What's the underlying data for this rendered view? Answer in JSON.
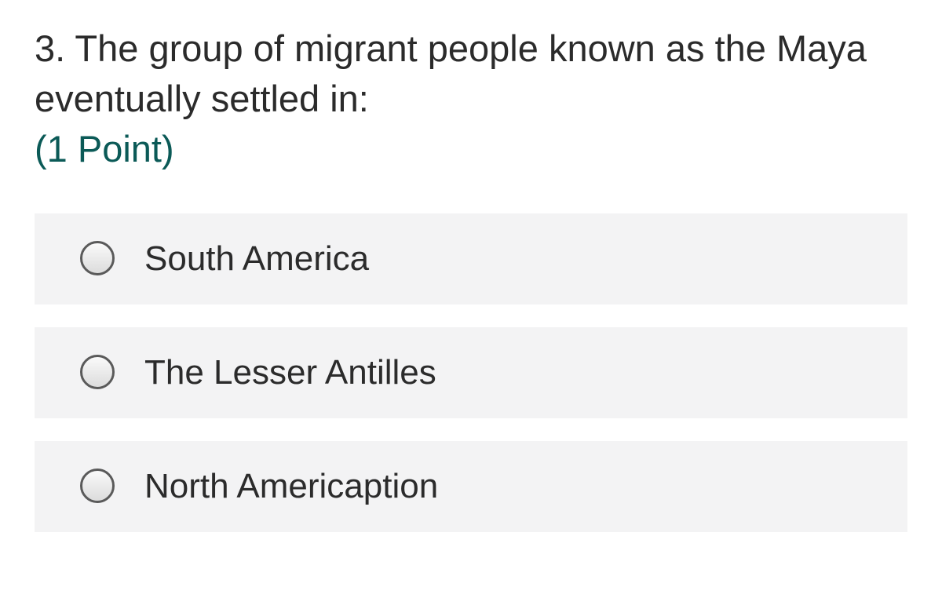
{
  "question": {
    "title": "3. The group of migrant people known as the Maya eventually settled in:",
    "points": "(1 Point)"
  },
  "options": [
    "South America",
    "The Lesser Antilles",
    "North Americaption"
  ]
}
